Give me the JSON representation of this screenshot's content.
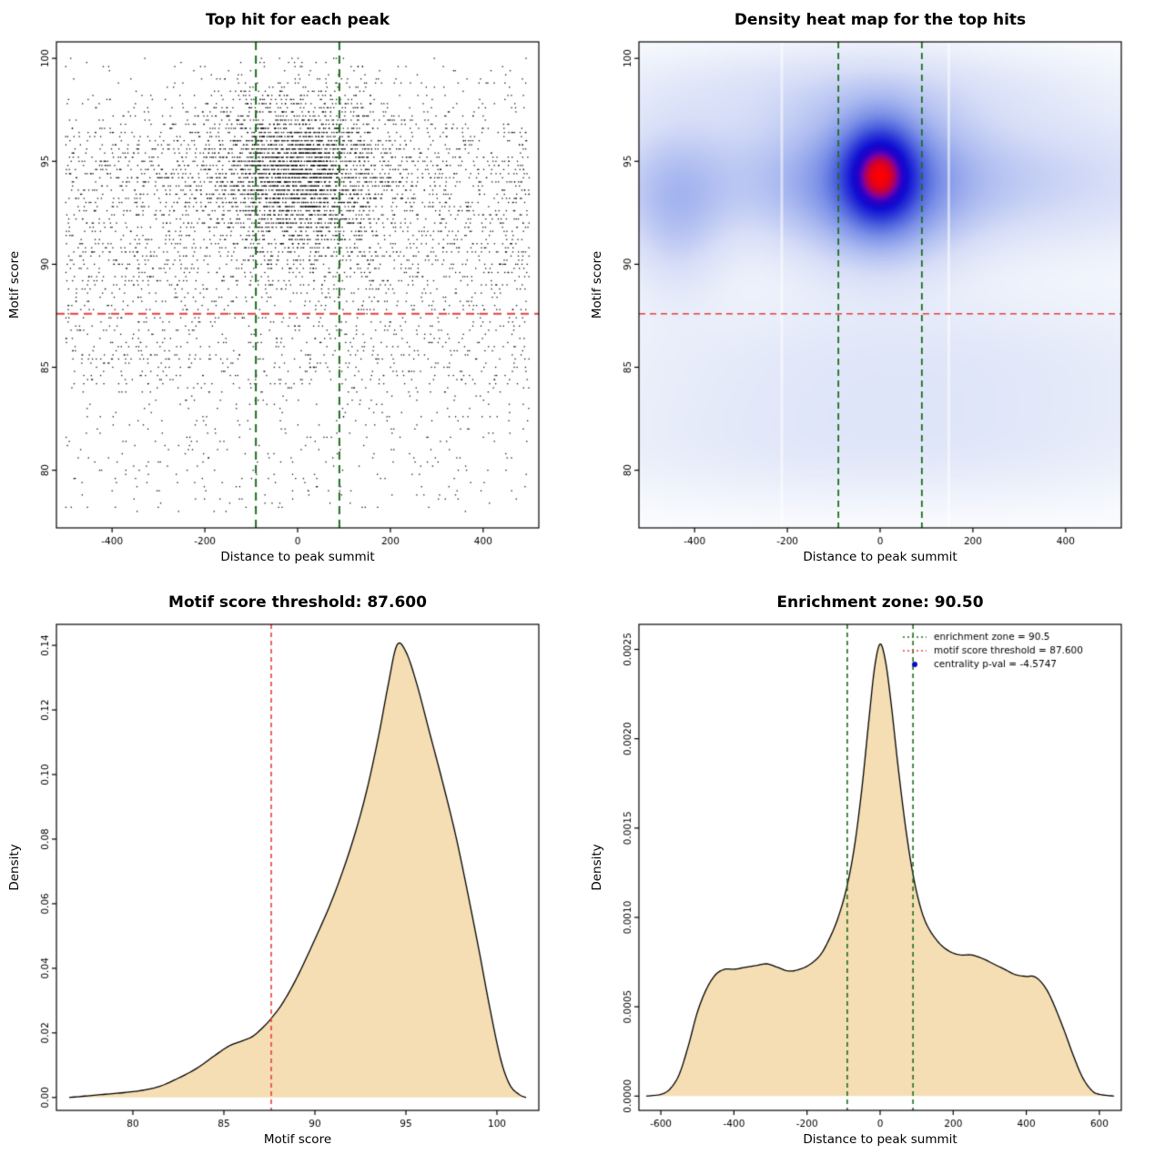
{
  "page": {
    "background": "#ffffff"
  },
  "values": {
    "motif_score_threshold": "87.600",
    "enrichment_zone": "90.50",
    "centrality_p_val": "-4.5747"
  },
  "colors": {
    "accent_green": "#1b6e1b",
    "accent_red": "#e53e3e",
    "fill_wheat": "#f5deb3",
    "legend_point_blue": "#0a0ac8",
    "points_black": "#111111"
  },
  "chart_data": [
    {
      "type": "scatter",
      "title": "Top hit for each peak",
      "xlabel": "Distance to peak summit",
      "ylabel": "Motif score",
      "xlim": [
        -520,
        520
      ],
      "ylim": [
        77.2,
        100.8
      ],
      "xticks": {
        "values": [
          -400,
          -200,
          0,
          200,
          400
        ],
        "labels": [
          "-400",
          "-200",
          "0",
          "200",
          "400"
        ]
      },
      "yticks": {
        "values": [
          80,
          85,
          90,
          95,
          100
        ],
        "labels": [
          "80",
          "85",
          "90",
          "95",
          "100"
        ]
      },
      "hline": {
        "y": 87.6,
        "color": "#e53e3e",
        "dash": [
          9,
          6
        ],
        "width": 2
      },
      "vlines": [
        {
          "x": -90,
          "color": "#1b6e1b",
          "dash": [
            9,
            6
          ],
          "width": 2
        },
        {
          "x": 90,
          "color": "#1b6e1b",
          "dash": [
            9,
            6
          ],
          "width": 2
        }
      ],
      "points": {
        "seed": 7,
        "n": 6500,
        "y_step": 0.2,
        "color": "#111111",
        "components": [
          {
            "w": 0.42,
            "x": [
              "n",
              0,
              100
            ],
            "y": [
              "n",
              94.6,
              1.9
            ]
          },
          {
            "w": 0.36,
            "x": [
              "u",
              -500,
              500
            ],
            "y": [
              "n",
              93.6,
              2.6
            ]
          },
          {
            "w": 0.14,
            "x": [
              "u",
              -500,
              500
            ],
            "y": [
              "u",
              84,
              91
            ]
          },
          {
            "w": 0.08,
            "x": [
              "u",
              -500,
              500
            ],
            "y": [
              "u",
              78,
              86
            ]
          }
        ]
      }
    },
    {
      "type": "heatmap",
      "title": "Density heat map for the top hits",
      "xlabel": "Distance to peak summit",
      "ylabel": "Motif score",
      "xlim": [
        -520,
        520
      ],
      "ylim": [
        77.2,
        100.8
      ],
      "xticks": {
        "values": [
          -400,
          -200,
          0,
          200,
          400
        ],
        "labels": [
          "-400",
          "-200",
          "0",
          "200",
          "400"
        ]
      },
      "yticks": {
        "values": [
          80,
          85,
          90,
          95,
          100
        ],
        "labels": [
          "80",
          "85",
          "90",
          "95",
          "100"
        ]
      },
      "hline": {
        "y": 87.6,
        "color": "#e53e3e",
        "dash": [
          7,
          5
        ],
        "width": 1.5
      },
      "vlines": [
        {
          "x": -90,
          "color": "#1b6e1b",
          "dash": [
            7,
            5
          ],
          "width": 1.8
        },
        {
          "x": 90,
          "color": "#1b6e1b",
          "dash": [
            7,
            5
          ],
          "width": 1.8
        }
      ],
      "gamma": 0.7,
      "gaps": [
        -212,
        148
      ],
      "components": [
        {
          "w": 1.0,
          "mx": 0,
          "sx": 52,
          "my": 94.4,
          "sy": 1.6
        },
        {
          "w": 0.5,
          "mx": 0,
          "sx": 115,
          "my": 93.9,
          "sy": 2.5
        },
        {
          "w": 0.3,
          "mx": 0,
          "sx": 430,
          "my": 94.1,
          "sy": 2.1
        },
        {
          "w": 0.22,
          "mx": -440,
          "sx": 70,
          "my": 92.6,
          "sy": 2.4
        },
        {
          "w": 0.13,
          "mx": -60,
          "sx": 330,
          "my": 98.4,
          "sy": 1.4
        },
        {
          "w": 0.1,
          "mx": 60,
          "sx": 480,
          "my": 85.0,
          "sy": 2.6
        },
        {
          "w": 0.07,
          "mx": 0,
          "sx": 480,
          "my": 81.0,
          "sy": 1.8
        }
      ],
      "ramp": [
        [
          0,
          "#ffffff"
        ],
        [
          0.07,
          "#eef2fb"
        ],
        [
          0.18,
          "#d7def7"
        ],
        [
          0.32,
          "#aab9f0"
        ],
        [
          0.46,
          "#7b90e7"
        ],
        [
          0.58,
          "#4f63de"
        ],
        [
          0.68,
          "#2b36d8"
        ],
        [
          0.78,
          "#0f0cd2"
        ],
        [
          0.85,
          "#2a00c6"
        ],
        [
          0.9,
          "#7a00a8"
        ],
        [
          0.95,
          "#cf0030"
        ],
        [
          1,
          "#ff0000"
        ]
      ]
    },
    {
      "type": "area",
      "title": "Motif score threshold: 87.600",
      "xlabel": "Motif score",
      "ylabel": "Density",
      "xlim": [
        75.8,
        102.3
      ],
      "ylim": [
        -0.004,
        0.1465
      ],
      "xticks": {
        "values": [
          80,
          85,
          90,
          95,
          100
        ],
        "labels": [
          "80",
          "85",
          "90",
          "95",
          "100"
        ]
      },
      "yticks": {
        "values": [
          0,
          0.02,
          0.04,
          0.06,
          0.08,
          0.1,
          0.12,
          0.14
        ],
        "labels": [
          "0.00",
          "0.02",
          "0.04",
          "0.06",
          "0.08",
          "0.10",
          "0.12",
          "0.14"
        ]
      },
      "fill": "#f5deb3",
      "stroke": "#000000",
      "vlines": [
        {
          "x": 87.6,
          "color": "#e53e3e",
          "dash": [
            5,
            4
          ],
          "width": 1.6
        }
      ],
      "x": [
        76.5,
        77.5,
        78.5,
        79.5,
        80.5,
        81.5,
        82.5,
        83.5,
        84.5,
        85.3,
        86.0,
        86.6,
        87.2,
        87.6,
        88.2,
        89.0,
        90.0,
        91.0,
        92.0,
        92.8,
        93.5,
        94.0,
        94.5,
        95.0,
        95.6,
        96.3,
        97.0,
        97.7,
        98.3,
        99.0,
        99.6,
        100.2,
        100.7,
        101.2,
        101.6
      ],
      "y": [
        0,
        0.0005,
        0.001,
        0.0015,
        0.0022,
        0.0035,
        0.006,
        0.009,
        0.013,
        0.016,
        0.0175,
        0.019,
        0.022,
        0.0245,
        0.029,
        0.037,
        0.049,
        0.062,
        0.078,
        0.094,
        0.112,
        0.127,
        0.14,
        0.138,
        0.128,
        0.113,
        0.098,
        0.082,
        0.066,
        0.046,
        0.028,
        0.012,
        0.004,
        0.001,
        0
      ]
    },
    {
      "type": "area",
      "title": "Enrichment zone: 90.50",
      "xlabel": "Distance to peak summit",
      "ylabel": "Density",
      "xlim": [
        -660,
        660
      ],
      "ylim": [
        -8e-05,
        0.00264
      ],
      "xticks": {
        "values": [
          -600,
          -400,
          -200,
          0,
          200,
          400,
          600
        ],
        "labels": [
          "-600",
          "-400",
          "-200",
          "0",
          "200",
          "400",
          "600"
        ]
      },
      "yticks": {
        "values": [
          0,
          0.0005,
          0.001,
          0.0015,
          0.002,
          0.0025
        ],
        "labels": [
          "0.0000",
          "0.0005",
          "0.0010",
          "0.0015",
          "0.0020",
          "0.0025"
        ]
      },
      "fill": "#f5deb3",
      "stroke": "#000000",
      "vlines": [
        {
          "x": -90,
          "color": "#1b6e1b",
          "dash": [
            5,
            4
          ],
          "width": 1.6
        },
        {
          "x": 90,
          "color": "#1b6e1b",
          "dash": [
            5,
            4
          ],
          "width": 1.6
        }
      ],
      "x": [
        -640,
        -600,
        -575,
        -550,
        -525,
        -500,
        -475,
        -450,
        -425,
        -400,
        -370,
        -340,
        -310,
        -280,
        -250,
        -220,
        -190,
        -160,
        -130,
        -110,
        -90,
        -70,
        -50,
        -30,
        -15,
        0,
        15,
        30,
        50,
        70,
        90,
        110,
        130,
        160,
        190,
        220,
        250,
        280,
        310,
        340,
        370,
        400,
        420,
        440,
        460,
        480,
        505,
        530,
        555,
        580,
        600,
        640
      ],
      "y": [
        0,
        1e-05,
        4e-05,
        0.00012,
        0.00028,
        0.00047,
        0.0006,
        0.00068,
        0.00071,
        0.00071,
        0.00072,
        0.00073,
        0.00074,
        0.00072,
        0.0007,
        0.00071,
        0.00074,
        0.0008,
        0.00092,
        0.00103,
        0.00118,
        0.0014,
        0.00172,
        0.00212,
        0.0024,
        0.00253,
        0.00243,
        0.0022,
        0.00183,
        0.0015,
        0.00124,
        0.00106,
        0.00095,
        0.00086,
        0.00081,
        0.00079,
        0.00079,
        0.00077,
        0.00074,
        0.00071,
        0.00068,
        0.00067,
        0.00067,
        0.00064,
        0.00058,
        0.00049,
        0.00036,
        0.00022,
        0.0001,
        3e-05,
        1e-05,
        0
      ],
      "legend": {
        "items": [
          {
            "label": "enrichment zone = 90.5",
            "color": "#1b6e1b",
            "marker": "dotted-line"
          },
          {
            "label": "motif score threshold = 87.600",
            "color": "#e53e3e",
            "marker": "dotted-line"
          },
          {
            "label": "centrality p-val = -4.5747",
            "color": "#0a0ac8",
            "marker": "point"
          }
        ]
      }
    }
  ]
}
